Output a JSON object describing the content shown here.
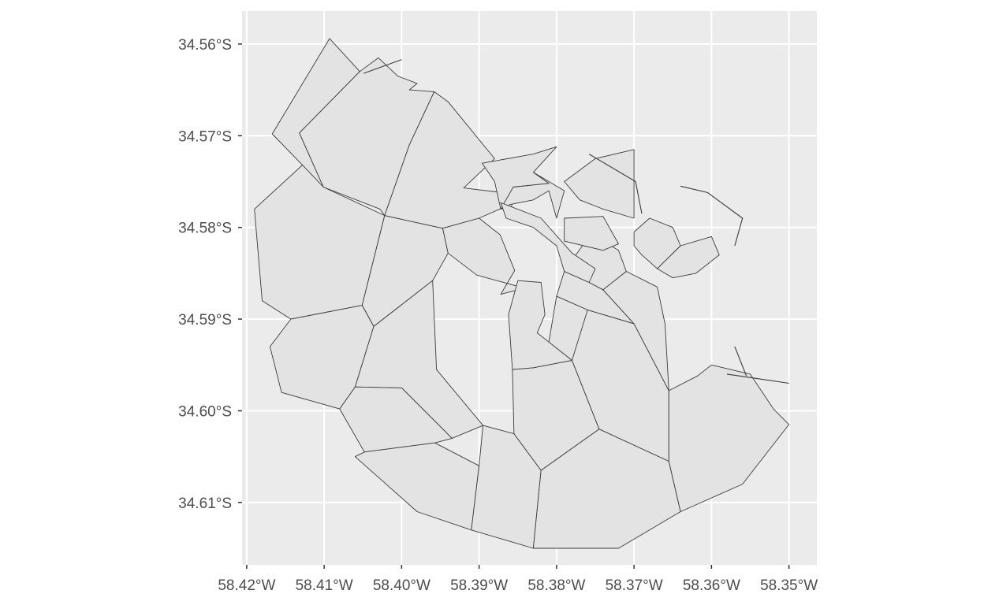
{
  "chart_data": {
    "type": "map",
    "x_ticks": [
      "58.42°W",
      "58.41°W",
      "58.40°W",
      "58.39°W",
      "58.38°W",
      "58.37°W",
      "58.36°W",
      "58.35°W"
    ],
    "y_ticks": [
      "34.56°S",
      "34.57°S",
      "34.58°S",
      "34.59°S",
      "34.60°S",
      "34.61°S"
    ],
    "x_values": [
      -58.42,
      -58.41,
      -58.4,
      -58.39,
      -58.38,
      -58.37,
      -58.36,
      -58.35
    ],
    "y_values": [
      -34.56,
      -34.57,
      -34.58,
      -34.59,
      -34.6,
      -34.61
    ],
    "xlim": [
      -58.4206,
      -58.3464
    ],
    "ylim": [
      -34.6168,
      -34.5564
    ],
    "grid": true,
    "colors": {
      "panel": "#ebebeb",
      "grid": "#ffffff",
      "fill": "#e3e3e3",
      "stroke": "#3b3b3b"
    },
    "regions": [
      [
        [
          -58.4167,
          -34.5698
        ],
        [
          -58.4093,
          -34.5594
        ],
        [
          -58.4054,
          -34.563
        ],
        [
          -58.4132,
          -34.5697
        ],
        [
          -58.4101,
          -34.5756
        ],
        [
          -58.4128,
          -34.5732
        ]
      ],
      [
        [
          -58.4132,
          -34.5697
        ],
        [
          -58.4054,
          -34.563
        ],
        [
          -58.403,
          -34.5615
        ],
        [
          -58.4005,
          -34.5635
        ],
        [
          -58.398,
          -34.5643
        ],
        [
          -58.399,
          -34.565
        ],
        [
          -58.3958,
          -34.5652
        ],
        [
          -58.399,
          -34.571
        ],
        [
          -58.4022,
          -34.5787
        ],
        [
          -58.4028,
          -34.578
        ],
        [
          -58.4101,
          -34.5756
        ]
      ],
      [
        [
          -58.4128,
          -34.5732
        ],
        [
          -58.4101,
          -34.5756
        ],
        [
          -58.4022,
          -34.5787
        ],
        [
          -58.4051,
          -34.5885
        ],
        [
          -58.4143,
          -34.59
        ],
        [
          -58.418,
          -34.588
        ],
        [
          -58.419,
          -34.578
        ]
      ],
      [
        [
          -58.4022,
          -34.5787
        ],
        [
          -58.3947,
          -34.5801
        ],
        [
          -58.394,
          -34.5828
        ],
        [
          -58.396,
          -34.5858
        ],
        [
          -58.4036,
          -34.5908
        ],
        [
          -58.4051,
          -34.5885
        ]
      ],
      [
        [
          -58.399,
          -34.571
        ],
        [
          -58.3958,
          -34.5652
        ],
        [
          -58.394,
          -34.5663
        ],
        [
          -58.388,
          -34.5725
        ],
        [
          -58.392,
          -34.5757
        ],
        [
          -58.387,
          -34.5762
        ],
        [
          -58.386,
          -34.5775
        ],
        [
          -58.39,
          -34.579
        ],
        [
          -58.3947,
          -34.5801
        ],
        [
          -58.4022,
          -34.5787
        ]
      ],
      [
        [
          -58.3947,
          -34.5801
        ],
        [
          -58.39,
          -34.579
        ],
        [
          -58.3873,
          -34.5808
        ],
        [
          -58.3854,
          -34.5847
        ],
        [
          -58.3872,
          -34.5873
        ],
        [
          -58.3836,
          -34.5865
        ],
        [
          -58.3825,
          -34.587
        ],
        [
          -58.3903,
          -34.5852
        ],
        [
          -58.394,
          -34.5828
        ]
      ],
      [
        [
          -58.4143,
          -34.59
        ],
        [
          -58.4051,
          -34.5885
        ],
        [
          -58.4036,
          -34.5908
        ],
        [
          -58.406,
          -34.5974
        ],
        [
          -58.408,
          -34.5998
        ],
        [
          -58.4155,
          -34.598
        ],
        [
          -58.417,
          -34.593
        ]
      ],
      [
        [
          -58.4036,
          -34.5908
        ],
        [
          -58.396,
          -34.5858
        ],
        [
          -58.3955,
          -34.5955
        ],
        [
          -58.3895,
          -34.6016
        ],
        [
          -58.3935,
          -34.603
        ],
        [
          -58.4,
          -34.5975
        ],
        [
          -58.406,
          -34.5974
        ]
      ],
      [
        [
          -58.406,
          -34.5974
        ],
        [
          -58.4,
          -34.5975
        ],
        [
          -58.3935,
          -34.603
        ],
        [
          -58.3957,
          -34.6035
        ],
        [
          -58.4048,
          -34.6045
        ],
        [
          -58.408,
          -34.5998
        ]
      ],
      [
        [
          -58.4048,
          -34.6045
        ],
        [
          -58.3957,
          -34.6035
        ],
        [
          -58.39,
          -34.606
        ],
        [
          -58.391,
          -34.613
        ],
        [
          -58.398,
          -34.611
        ],
        [
          -58.402,
          -34.608
        ],
        [
          -58.406,
          -34.605
        ]
      ],
      [
        [
          -58.39,
          -34.606
        ],
        [
          -58.3895,
          -34.6016
        ],
        [
          -58.3855,
          -34.6025
        ],
        [
          -58.382,
          -34.6065
        ],
        [
          -58.383,
          -34.615
        ],
        [
          -58.391,
          -34.613
        ]
      ],
      [
        [
          -58.3855,
          -34.6025
        ],
        [
          -58.3857,
          -34.5955
        ],
        [
          -58.383,
          -34.5953
        ],
        [
          -58.378,
          -34.5945
        ],
        [
          -58.3745,
          -34.602
        ],
        [
          -58.382,
          -34.6065
        ]
      ],
      [
        [
          -58.382,
          -34.6065
        ],
        [
          -58.3745,
          -34.602
        ],
        [
          -58.3655,
          -34.6055
        ],
        [
          -58.364,
          -34.611
        ],
        [
          -58.372,
          -34.615
        ],
        [
          -58.383,
          -34.615
        ]
      ],
      [
        [
          -58.3857,
          -34.5955
        ],
        [
          -58.3862,
          -34.5895
        ],
        [
          -58.385,
          -34.5858
        ],
        [
          -58.382,
          -34.586
        ],
        [
          -58.3815,
          -34.5895
        ],
        [
          -58.3825,
          -34.5915
        ],
        [
          -58.381,
          -34.5925
        ],
        [
          -58.378,
          -34.5945
        ],
        [
          -58.383,
          -34.5953
        ]
      ],
      [
        [
          -58.378,
          -34.5945
        ],
        [
          -58.381,
          -34.5925
        ],
        [
          -58.38,
          -34.5875
        ],
        [
          -58.376,
          -34.589
        ],
        [
          -58.3745,
          -34.592
        ]
      ],
      [
        [
          -58.3745,
          -34.602
        ],
        [
          -58.378,
          -34.5945
        ],
        [
          -58.376,
          -34.589
        ],
        [
          -58.37,
          -34.5905
        ],
        [
          -58.3655,
          -34.5978
        ],
        [
          -58.3655,
          -34.6055
        ]
      ],
      [
        [
          -58.3655,
          -34.6055
        ],
        [
          -58.3655,
          -34.5978
        ],
        [
          -58.3618,
          -34.5962
        ],
        [
          -58.36,
          -34.595
        ],
        [
          -58.355,
          -34.596
        ],
        [
          -58.352,
          -34.5998
        ],
        [
          -58.35,
          -34.6015
        ],
        [
          -58.356,
          -34.608
        ],
        [
          -58.364,
          -34.611
        ]
      ],
      [
        [
          -58.376,
          -34.589
        ],
        [
          -58.38,
          -34.5875
        ],
        [
          -58.379,
          -34.5848
        ],
        [
          -58.3758,
          -34.586
        ],
        [
          -58.374,
          -34.5868
        ],
        [
          -58.37,
          -34.5905
        ]
      ],
      [
        [
          -58.37,
          -34.5905
        ],
        [
          -58.374,
          -34.5868
        ],
        [
          -58.371,
          -34.5848
        ],
        [
          -58.367,
          -34.5865
        ],
        [
          -58.366,
          -34.5905
        ],
        [
          -58.3655,
          -34.5978
        ]
      ],
      [
        [
          -58.3758,
          -34.586
        ],
        [
          -58.379,
          -34.5848
        ],
        [
          -58.375,
          -34.58
        ],
        [
          -58.374,
          -34.5815
        ],
        [
          -58.372,
          -34.5825
        ],
        [
          -58.371,
          -34.5848
        ],
        [
          -58.374,
          -34.5868
        ]
      ],
      [
        [
          -58.3896,
          -34.573
        ],
        [
          -58.383,
          -34.572
        ],
        [
          -58.38,
          -34.5712
        ],
        [
          -58.383,
          -34.574
        ],
        [
          -58.381,
          -34.5752
        ],
        [
          -58.3856,
          -34.5756
        ],
        [
          -58.3858,
          -34.5778
        ],
        [
          -58.3872,
          -34.578
        ],
        [
          -58.388,
          -34.575
        ]
      ],
      [
        [
          -58.383,
          -34.574
        ],
        [
          -58.381,
          -34.5752
        ],
        [
          -58.3856,
          -34.5756
        ],
        [
          -58.3872,
          -34.578
        ],
        [
          -58.386,
          -34.5775
        ],
        [
          -58.383,
          -34.577
        ],
        [
          -58.381,
          -34.576
        ],
        [
          -58.38,
          -34.579
        ],
        [
          -58.379,
          -34.576
        ]
      ],
      [
        [
          -58.3872,
          -34.5773
        ],
        [
          -58.382,
          -34.579
        ],
        [
          -58.378,
          -34.5828
        ],
        [
          -58.375,
          -34.5845
        ],
        [
          -58.3758,
          -34.586
        ],
        [
          -58.379,
          -34.5848
        ],
        [
          -58.38,
          -34.582
        ],
        [
          -58.383,
          -34.58
        ],
        [
          -58.3865,
          -34.579
        ]
      ],
      [
        [
          -58.37,
          -34.577
        ],
        [
          -58.37,
          -34.5715
        ],
        [
          -58.375,
          -34.5725
        ],
        [
          -58.379,
          -34.575
        ],
        [
          -58.377,
          -34.577
        ],
        [
          -58.374,
          -34.578
        ],
        [
          -58.37,
          -34.579
        ]
      ],
      [
        [
          -58.379,
          -34.579
        ],
        [
          -58.374,
          -34.5788
        ],
        [
          -58.372,
          -34.5818
        ],
        [
          -58.374,
          -34.5825
        ],
        [
          -58.379,
          -34.5815
        ]
      ],
      [
        [
          -58.37,
          -34.5805
        ],
        [
          -58.368,
          -34.579
        ],
        [
          -58.365,
          -34.58
        ],
        [
          -58.364,
          -34.582
        ],
        [
          -58.367,
          -34.5845
        ],
        [
          -58.369,
          -34.583
        ],
        [
          -58.37,
          -34.582
        ]
      ],
      [
        [
          -58.364,
          -34.582
        ],
        [
          -58.36,
          -34.581
        ],
        [
          -58.359,
          -34.583
        ],
        [
          -58.362,
          -34.585
        ],
        [
          -58.365,
          -34.5855
        ],
        [
          -58.367,
          -34.5845
        ]
      ]
    ],
    "coastlines": [
      [
        [
          -58.4049,
          -34.5632
        ],
        [
          -58.4,
          -34.5617
        ]
      ],
      [
        [
          -58.3758,
          -34.572
        ],
        [
          -58.3698,
          -34.575
        ],
        [
          -58.369,
          -34.5785
        ]
      ],
      [
        [
          -58.364,
          -34.5755
        ],
        [
          -58.3605,
          -34.5762
        ],
        [
          -58.356,
          -34.579
        ],
        [
          -58.357,
          -34.582
        ]
      ],
      [
        [
          -58.357,
          -34.593
        ],
        [
          -58.3555,
          -34.5962
        ]
      ],
      [
        [
          -58.358,
          -34.596
        ],
        [
          -58.354,
          -34.5965
        ],
        [
          -58.35,
          -34.597
        ]
      ]
    ]
  }
}
